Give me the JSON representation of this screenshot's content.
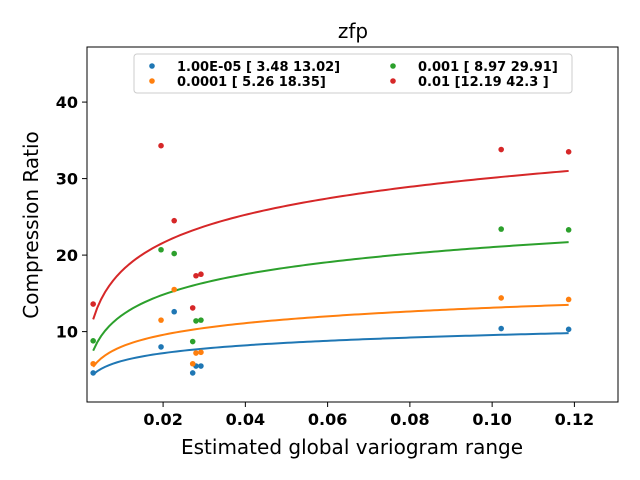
{
  "chart_data": {
    "type": "scatter",
    "title": "zfp",
    "xlabel": "Estimated global variogram range",
    "ylabel": "Compression Ratio",
    "xlim": [
      0.0015,
      0.1306
    ],
    "ylim": [
      0.8,
      47.2
    ],
    "xticks": [
      0.02,
      0.04,
      0.06,
      0.08,
      0.1,
      0.12
    ],
    "xtick_labels": [
      "0.02",
      "0.04",
      "0.06",
      "0.08",
      "0.10",
      "0.12"
    ],
    "yticks": [
      10,
      20,
      30,
      40
    ],
    "ytick_labels": [
      "10",
      "20",
      "30",
      "40"
    ],
    "grid": false,
    "legend_position": "top-center",
    "series": [
      {
        "name": "1.00E-05 [ 3.48 13.02]",
        "color": "#1f77b4",
        "x": [
          0.003,
          0.0195,
          0.0227,
          0.0272,
          0.028,
          0.0292
        ],
        "y": [
          4.6,
          8.0,
          12.6,
          4.6,
          5.5,
          5.5
        ],
        "extra_x": [
          0.1022,
          0.1186
        ],
        "extra_y": [
          10.4,
          10.3
        ],
        "fit": {
          "a": 7.72,
          "b": 0.0
        }
      },
      {
        "name": "0.0001 [ 5.26 18.35]",
        "color": "#ff7f0e",
        "x": [
          0.003,
          0.0195,
          0.0227,
          0.0272,
          0.028,
          0.0292
        ],
        "y": [
          5.8,
          11.5,
          15.5,
          5.8,
          7.2,
          7.3
        ],
        "extra_x": [
          0.1022,
          0.1186
        ],
        "extra_y": [
          14.4,
          14.2
        ],
        "fit": {
          "a": 9.8,
          "b": 0.0
        }
      },
      {
        "name": "0.001 [ 8.97 29.91]",
        "color": "#2ca02c",
        "x": [
          0.003,
          0.0195,
          0.0227,
          0.0272,
          0.028,
          0.0292
        ],
        "y": [
          8.8,
          20.7,
          20.2,
          8.7,
          11.4,
          11.5
        ],
        "extra_x": [
          0.1022,
          0.1186
        ],
        "extra_y": [
          23.4,
          23.3
        ],
        "fit": {
          "a": 15.8,
          "b": 0.0
        }
      },
      {
        "name": "0.01 [12.19 42.3 ]",
        "color": "#d62728",
        "x": [
          0.003,
          0.0195,
          0.0227,
          0.0272,
          0.028,
          0.0292
        ],
        "y": [
          13.6,
          34.3,
          24.5,
          13.1,
          17.3,
          17.5
        ],
        "extra_x": [
          0.1022,
          0.1186
        ],
        "extra_y": [
          33.8,
          33.5
        ],
        "fit": {
          "a": 22.9,
          "b": 0.0
        }
      }
    ],
    "fit_curves": [
      {
        "color": "#1f77b4",
        "y_start": 4.4,
        "y_end": 9.8
      },
      {
        "color": "#ff7f0e",
        "y_start": 5.4,
        "y_end": 13.5
      },
      {
        "color": "#2ca02c",
        "y_start": 7.5,
        "y_end": 21.7
      },
      {
        "color": "#d62728",
        "y_start": 11.6,
        "y_end": 31.0
      }
    ]
  }
}
